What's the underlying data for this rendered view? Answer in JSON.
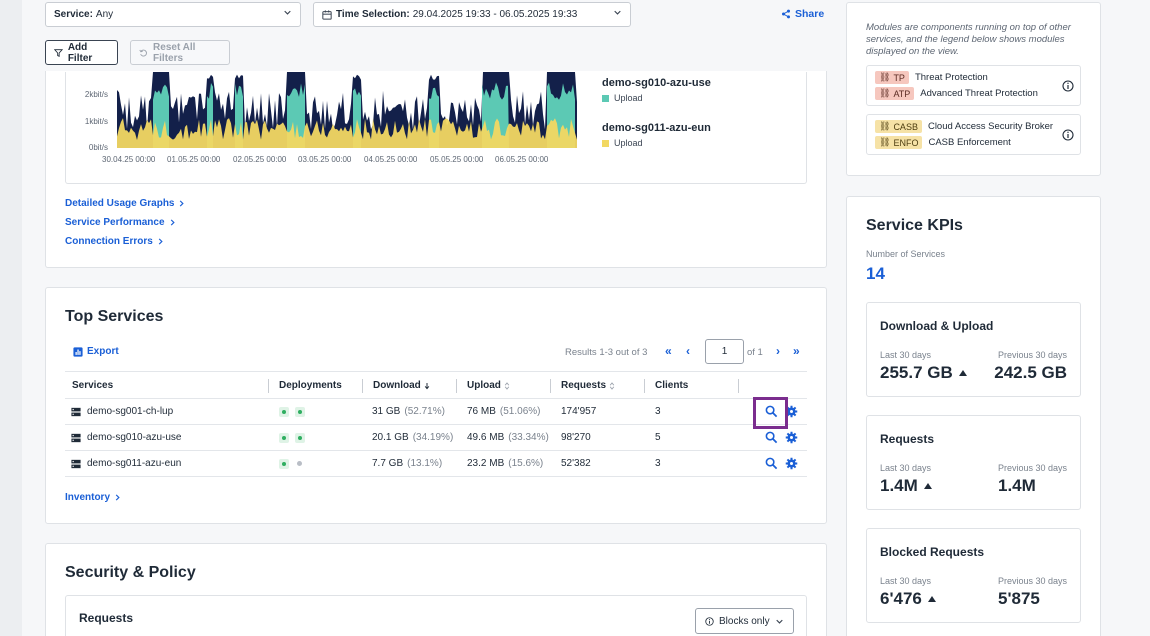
{
  "filters": {
    "service_label": "Service:",
    "service_value": "Any",
    "time_label": "Time Selection:",
    "time_value": "29.04.2025 19:33 - 06.05.2025 19:33",
    "share": "Share",
    "add_filter": "Add Filter",
    "reset_filters": "Reset All Filters"
  },
  "usage_graph": {
    "y_ticks": [
      "2kbit/s",
      "1kbit/s",
      "0bit/s"
    ],
    "x_ticks": [
      "30.04.25 00:00",
      "01.05.25 00:00",
      "02.05.25 00:00",
      "03.05.25 00:00",
      "04.05.25 00:00",
      "05.05.25 00:00",
      "06.05.25 00:00"
    ],
    "legend": [
      {
        "name": "demo-sg010-azu-use",
        "sub": "Upload",
        "color": "#5cc9b4"
      },
      {
        "name": "demo-sg011-azu-eun",
        "sub": "Upload",
        "color": "#f2d862"
      }
    ],
    "colors": {
      "base": "#13204a",
      "teal": "#5cc9b4",
      "yellow": "#f2d862"
    }
  },
  "links": {
    "detailed": "Detailed Usage Graphs",
    "performance": "Service Performance",
    "errors": "Connection Errors",
    "inventory": "Inventory"
  },
  "top_services": {
    "title": "Top Services",
    "export": "Export",
    "results": "Results 1-3 out of 3",
    "page": "1",
    "of_pages": "of 1",
    "columns": [
      "Services",
      "Deployments",
      "Download",
      "Upload",
      "Requests",
      "Clients"
    ],
    "rows": [
      {
        "name": "demo-sg001-ch-lup",
        "download": "31 GB",
        "download_pct": "(52.71%)",
        "upload": "76 MB",
        "upload_pct": "(51.06%)",
        "requests": "174'957",
        "clients": "3",
        "deployments": [
          "on",
          "on"
        ]
      },
      {
        "name": "demo-sg010-azu-use",
        "download": "20.1 GB",
        "download_pct": "(34.19%)",
        "upload": "49.6 MB",
        "upload_pct": "(33.34%)",
        "requests": "98'270",
        "clients": "5",
        "deployments": [
          "on",
          "on"
        ]
      },
      {
        "name": "demo-sg011-azu-eun",
        "download": "7.7 GB",
        "download_pct": "(13.1%)",
        "upload": "23.2 MB",
        "upload_pct": "(15.6%)",
        "requests": "52'382",
        "clients": "3",
        "deployments": [
          "on",
          "off"
        ]
      }
    ]
  },
  "security": {
    "title": "Security & Policy",
    "requests_title": "Requests",
    "blocks_only": "Blocks only"
  },
  "modules": {
    "note": "Modules are components running on top of other services, and the legend below shows modules displayed on the view.",
    "groups": [
      [
        {
          "tag": "TP",
          "label": "Threat Protection"
        },
        {
          "tag": "ATP",
          "label": "Advanced Threat Protection"
        }
      ],
      [
        {
          "tag": "CASB",
          "label": "Cloud Access Security Broker"
        },
        {
          "tag": "ENFO",
          "label": "CASB Enforcement"
        }
      ]
    ]
  },
  "kpis": {
    "title": "Service KPIs",
    "num_services_label": "Number of Services",
    "num_services": "14",
    "cards": [
      {
        "title": "Download & Upload",
        "last_label": "Last 30 days",
        "last": "255.7 GB",
        "prev_label": "Previous 30 days",
        "prev": "242.5 GB"
      },
      {
        "title": "Requests",
        "last_label": "Last 30 days",
        "last": "1.4M",
        "prev_label": "Previous 30 days",
        "prev": "1.4M"
      },
      {
        "title": "Blocked Requests",
        "last_label": "Last 30 days",
        "last": "6'476",
        "prev_label": "Previous 30 days",
        "prev": "5'875"
      }
    ]
  }
}
